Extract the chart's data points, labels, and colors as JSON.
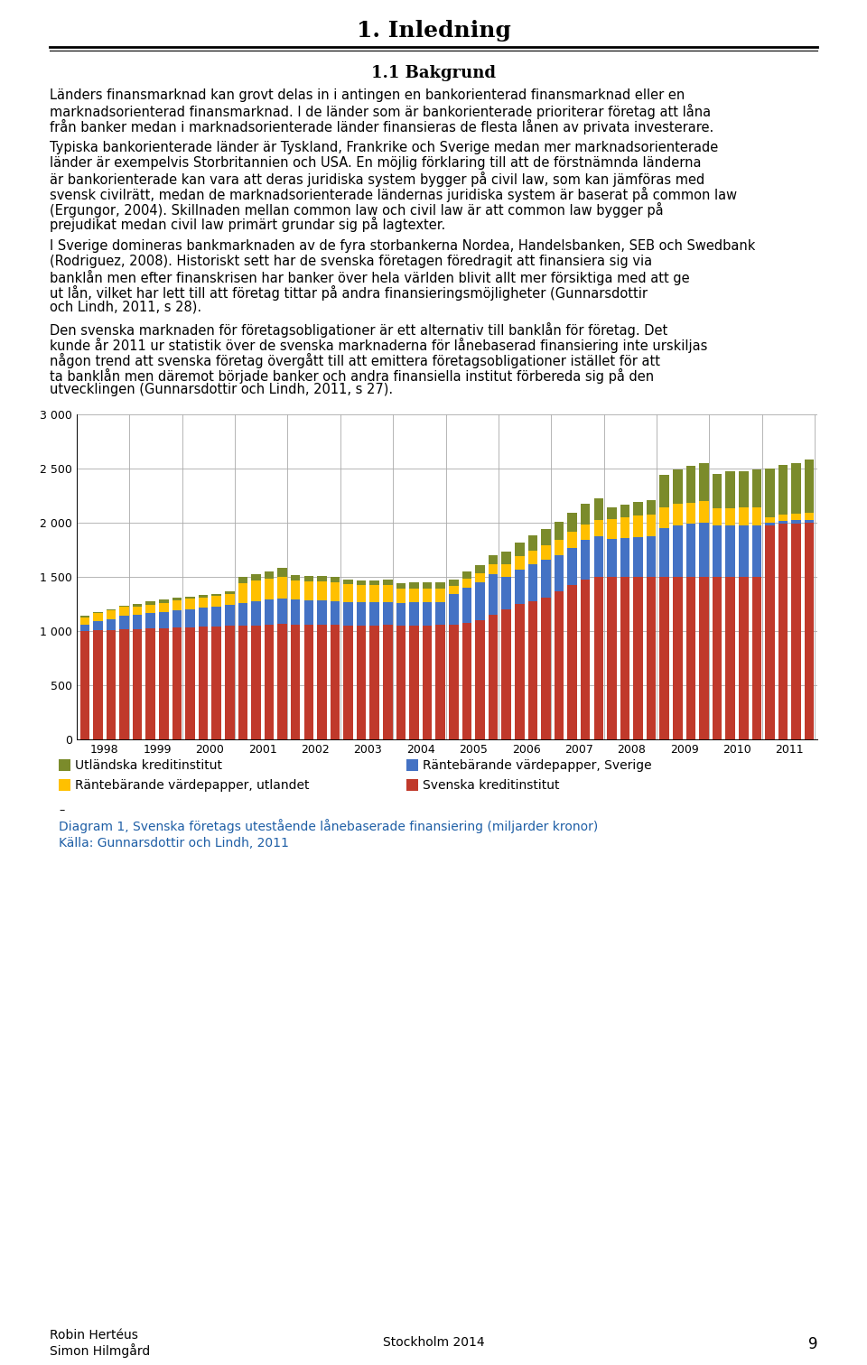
{
  "title": "1. Inledning",
  "section_title": "1.1 Bakgrund",
  "para1": "Länders finansmarknad kan grovt delas in i antingen en bankorienterad finansmarknad eller en marknadsorienterad finansmarknad. I de länder som är bankorienterade prioriterar företag att låna från banker medan i marknadsorienterade länder finansieras de flesta lånen av privata investerare.",
  "para2": "Typiska bankorienterade länder är Tyskland, Frankrike och Sverige medan mer marknadsorienterade länder är exempelvis Storbritannien och USA. En möjlig förklaring till att de förstnämnda länderna är bankorienterade kan vara att deras juridiska system bygger på civil law, som kan jämföras med svensk civilrätt, medan de marknadsorienterade ländernas juridiska system är baserat på common law (Ergungor, 2004). Skillnaden mellan common law och civil law är att common law bygger på prejudikat medan civil law primärt grundar sig på lagtexter.",
  "para3": "I Sverige domineras bankmarknaden av de fyra storbankerna Nordea, Handelsbanken, SEB och Swedbank (Rodriguez, 2008). Historiskt sett har de svenska företagen föredragit att finansiera sig via banklån men efter finanskrisen har banker över hela världen blivit allt mer försiktiga med att ge ut lån, vilket har lett till att företag tittar på andra finansieringsmöjligheter (Gunnarsdottir och Lindh, 2011, s 28).",
  "para4": "Den svenska marknaden för företagsobligationer är ett alternativ till banklån för företag. Det kunde år 2011 ur statistik över de svenska marknaderna för lånebaserad finansiering inte urskiljas någon trend att svenska företag övergått till att emittera företagsobligationer istället för att ta banklån men däremot började banker och andra finansiella institut förbereda sig på den utvecklingen (Gunnarsdottir och Lindh, 2011, s 27).",
  "svenska_kreditinstitut": [
    1000,
    1010,
    1010,
    1020,
    1020,
    1025,
    1030,
    1035,
    1035,
    1040,
    1045,
    1050,
    1050,
    1055,
    1060,
    1065,
    1060,
    1060,
    1060,
    1060,
    1055,
    1055,
    1055,
    1060,
    1050,
    1055,
    1055,
    1060,
    1060,
    1080,
    1100,
    1150,
    1200,
    1250,
    1280,
    1310,
    1370,
    1430,
    1480,
    1500,
    1500,
    1500,
    1500,
    1500,
    1500,
    1500,
    1500,
    1500,
    1500,
    1500,
    1500,
    1500,
    1980,
    1990,
    1995,
    2000
  ],
  "vp_sverige": [
    60,
    80,
    100,
    120,
    130,
    140,
    150,
    160,
    170,
    175,
    180,
    190,
    210,
    220,
    230,
    240,
    230,
    225,
    225,
    220,
    215,
    210,
    210,
    210,
    210,
    210,
    210,
    210,
    280,
    320,
    350,
    380,
    300,
    320,
    340,
    350,
    330,
    340,
    360,
    380,
    350,
    360,
    370,
    380,
    450,
    480,
    490,
    500,
    480,
    480,
    480,
    480,
    20,
    30,
    30,
    30
  ],
  "vp_utlandet": [
    70,
    75,
    80,
    85,
    80,
    82,
    84,
    86,
    95,
    98,
    100,
    105,
    180,
    190,
    195,
    200,
    180,
    178,
    175,
    172,
    162,
    160,
    158,
    156,
    132,
    130,
    128,
    126,
    80,
    85,
    88,
    92,
    115,
    120,
    125,
    130,
    140,
    145,
    148,
    150,
    185,
    190,
    195,
    200,
    190,
    195,
    195,
    200,
    155,
    158,
    160,
    162,
    55,
    58,
    60,
    62
  ],
  "utlandska": [
    10,
    12,
    13,
    14,
    25,
    28,
    30,
    32,
    18,
    20,
    22,
    25,
    60,
    65,
    70,
    78,
    45,
    47,
    48,
    50,
    45,
    47,
    48,
    50,
    52,
    54,
    56,
    58,
    60,
    65,
    70,
    78,
    120,
    130,
    140,
    150,
    170,
    180,
    190,
    200,
    110,
    120,
    125,
    130,
    300,
    320,
    340,
    355,
    320,
    335,
    340,
    350,
    450,
    460,
    470,
    490
  ],
  "x_labels": [
    "1998",
    "",
    "",
    "",
    "1999",
    "",
    "",
    "",
    "2000",
    "",
    "",
    "",
    "2001",
    "",
    "",
    "",
    "2002",
    "",
    "",
    "",
    "2003",
    "",
    "",
    "",
    "2004",
    "",
    "",
    "",
    "2005",
    "",
    "",
    "",
    "2006",
    "",
    "",
    "",
    "2007",
    "",
    "",
    "",
    "2008",
    "",
    "",
    "",
    "2009",
    "",
    "",
    "",
    "2010",
    "",
    "",
    "",
    "2011",
    "",
    "",
    ""
  ],
  "x_year_positions": [
    0,
    4,
    8,
    12,
    16,
    20,
    24,
    28,
    32,
    36,
    40,
    44,
    48,
    52
  ],
  "x_year_labels": [
    "1998",
    "1999",
    "2000",
    "2001",
    "2002",
    "2003",
    "2004",
    "2005",
    "2006",
    "2007",
    "2008",
    "2009",
    "2010",
    "2011"
  ],
  "color_svenska": "#C0392B",
  "color_vp_sverige": "#4472C4",
  "color_vp_utlandet": "#FFC000",
  "color_utlandska": "#7B8B2B",
  "ylim": [
    0,
    3000
  ],
  "ytick_vals": [
    0,
    500,
    1000,
    1500,
    2000,
    2500,
    3000
  ],
  "ytick_labels": [
    "0",
    "500",
    "1 000",
    "1 500",
    "2 000",
    "2 500",
    "3 000"
  ],
  "diagram_caption": "Diagram 1, Svenska företags utestående lånebaserade finansiering (miljarder kronor)",
  "source_caption": "Källa: Gunnarsdottir och Lindh, 2011",
  "footer_left1": "Robin Hertéus",
  "footer_left2": "Simon Hilmgård",
  "footer_center": "Stockholm 2014",
  "page_number": "9",
  "legend_items": [
    {
      "label": "Utländska kreditinstitut",
      "color": "#7B8B2B"
    },
    {
      "label": "Räntebärande värdepapper, Sverige",
      "color": "#4472C4"
    },
    {
      "label": "Räntebärande värdepapper, utlandet",
      "color": "#FFC000"
    },
    {
      "label": "Svenska kreditinstitut",
      "color": "#C0392B"
    }
  ]
}
